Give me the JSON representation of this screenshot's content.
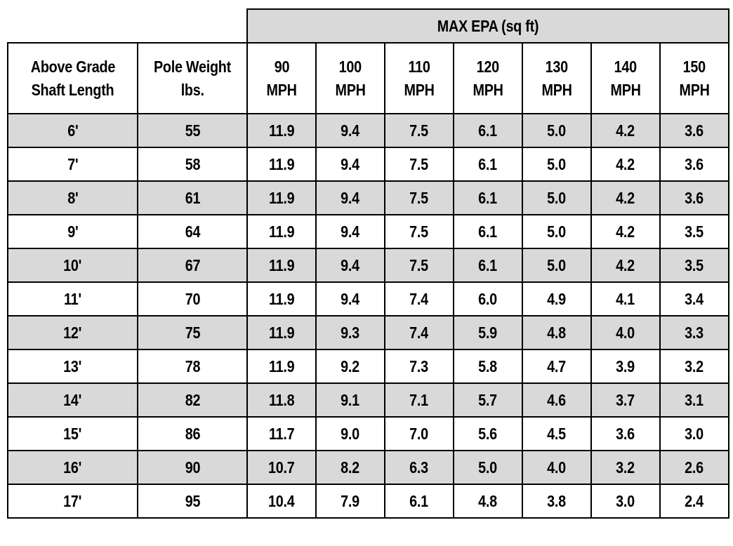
{
  "table": {
    "group_header": "MAX EPA (sq ft)",
    "columns": [
      [
        "Above Grade",
        "Shaft Length"
      ],
      [
        "Pole Weight",
        "lbs."
      ],
      [
        "90",
        "MPH"
      ],
      [
        "100",
        "MPH"
      ],
      [
        "110",
        "MPH"
      ],
      [
        "120",
        "MPH"
      ],
      [
        "130",
        "MPH"
      ],
      [
        "140",
        "MPH"
      ],
      [
        "150",
        "MPH"
      ]
    ],
    "rows": [
      [
        "6'",
        "55",
        "11.9",
        "9.4",
        "7.5",
        "6.1",
        "5.0",
        "4.2",
        "3.6"
      ],
      [
        "7'",
        "58",
        "11.9",
        "9.4",
        "7.5",
        "6.1",
        "5.0",
        "4.2",
        "3.6"
      ],
      [
        "8'",
        "61",
        "11.9",
        "9.4",
        "7.5",
        "6.1",
        "5.0",
        "4.2",
        "3.6"
      ],
      [
        "9'",
        "64",
        "11.9",
        "9.4",
        "7.5",
        "6.1",
        "5.0",
        "4.2",
        "3.5"
      ],
      [
        "10'",
        "67",
        "11.9",
        "9.4",
        "7.5",
        "6.1",
        "5.0",
        "4.2",
        "3.5"
      ],
      [
        "11'",
        "70",
        "11.9",
        "9.4",
        "7.4",
        "6.0",
        "4.9",
        "4.1",
        "3.4"
      ],
      [
        "12'",
        "75",
        "11.9",
        "9.3",
        "7.4",
        "5.9",
        "4.8",
        "4.0",
        "3.3"
      ],
      [
        "13'",
        "78",
        "11.9",
        "9.2",
        "7.3",
        "5.8",
        "4.7",
        "3.9",
        "3.2"
      ],
      [
        "14'",
        "82",
        "11.8",
        "9.1",
        "7.1",
        "5.7",
        "4.6",
        "3.7",
        "3.1"
      ],
      [
        "15'",
        "86",
        "11.7",
        "9.0",
        "7.0",
        "5.6",
        "4.5",
        "3.6",
        "3.0"
      ],
      [
        "16'",
        "90",
        "10.7",
        "8.2",
        "6.3",
        "5.0",
        "4.0",
        "3.2",
        "2.6"
      ],
      [
        "17'",
        "95",
        "10.4",
        "7.9",
        "6.1",
        "4.8",
        "3.8",
        "3.0",
        "2.4"
      ]
    ]
  }
}
